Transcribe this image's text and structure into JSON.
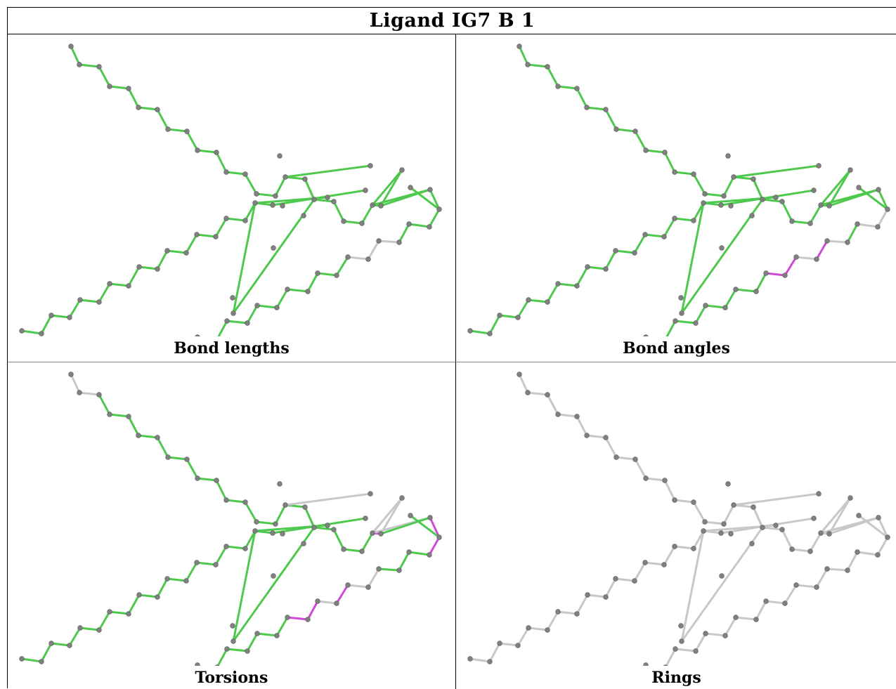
{
  "title": "Ligand IG7 B 1",
  "colors": {
    "ok": "#4ec94e",
    "outlier": "#d04ad6",
    "neutral": "#c8c8c8",
    "atom": "#808080",
    "atom_highlight": "#b0b0b0"
  },
  "panels": [
    {
      "caption": "Bond lengths",
      "default_bond": "ok",
      "outlier_bonds": [],
      "neutral_bonds": [
        52,
        53,
        54
      ]
    },
    {
      "caption": "Bond angles",
      "default_bond": "ok",
      "outlier_bonds": [
        53,
        55,
        56
      ],
      "neutral_bonds": [
        49,
        50,
        52,
        54
      ]
    },
    {
      "caption": "Torsions",
      "default_bond": "ok",
      "outlier_bonds": [
        48,
        49,
        55,
        57,
        58,
        46
      ],
      "neutral_bonds": [
        0,
        1,
        39,
        44,
        45,
        47,
        53,
        54,
        56,
        78,
        79
      ]
    },
    {
      "caption": "Rings",
      "default_bond": "neutral",
      "outlier_bonds": [],
      "neutral_bonds": []
    }
  ]
}
